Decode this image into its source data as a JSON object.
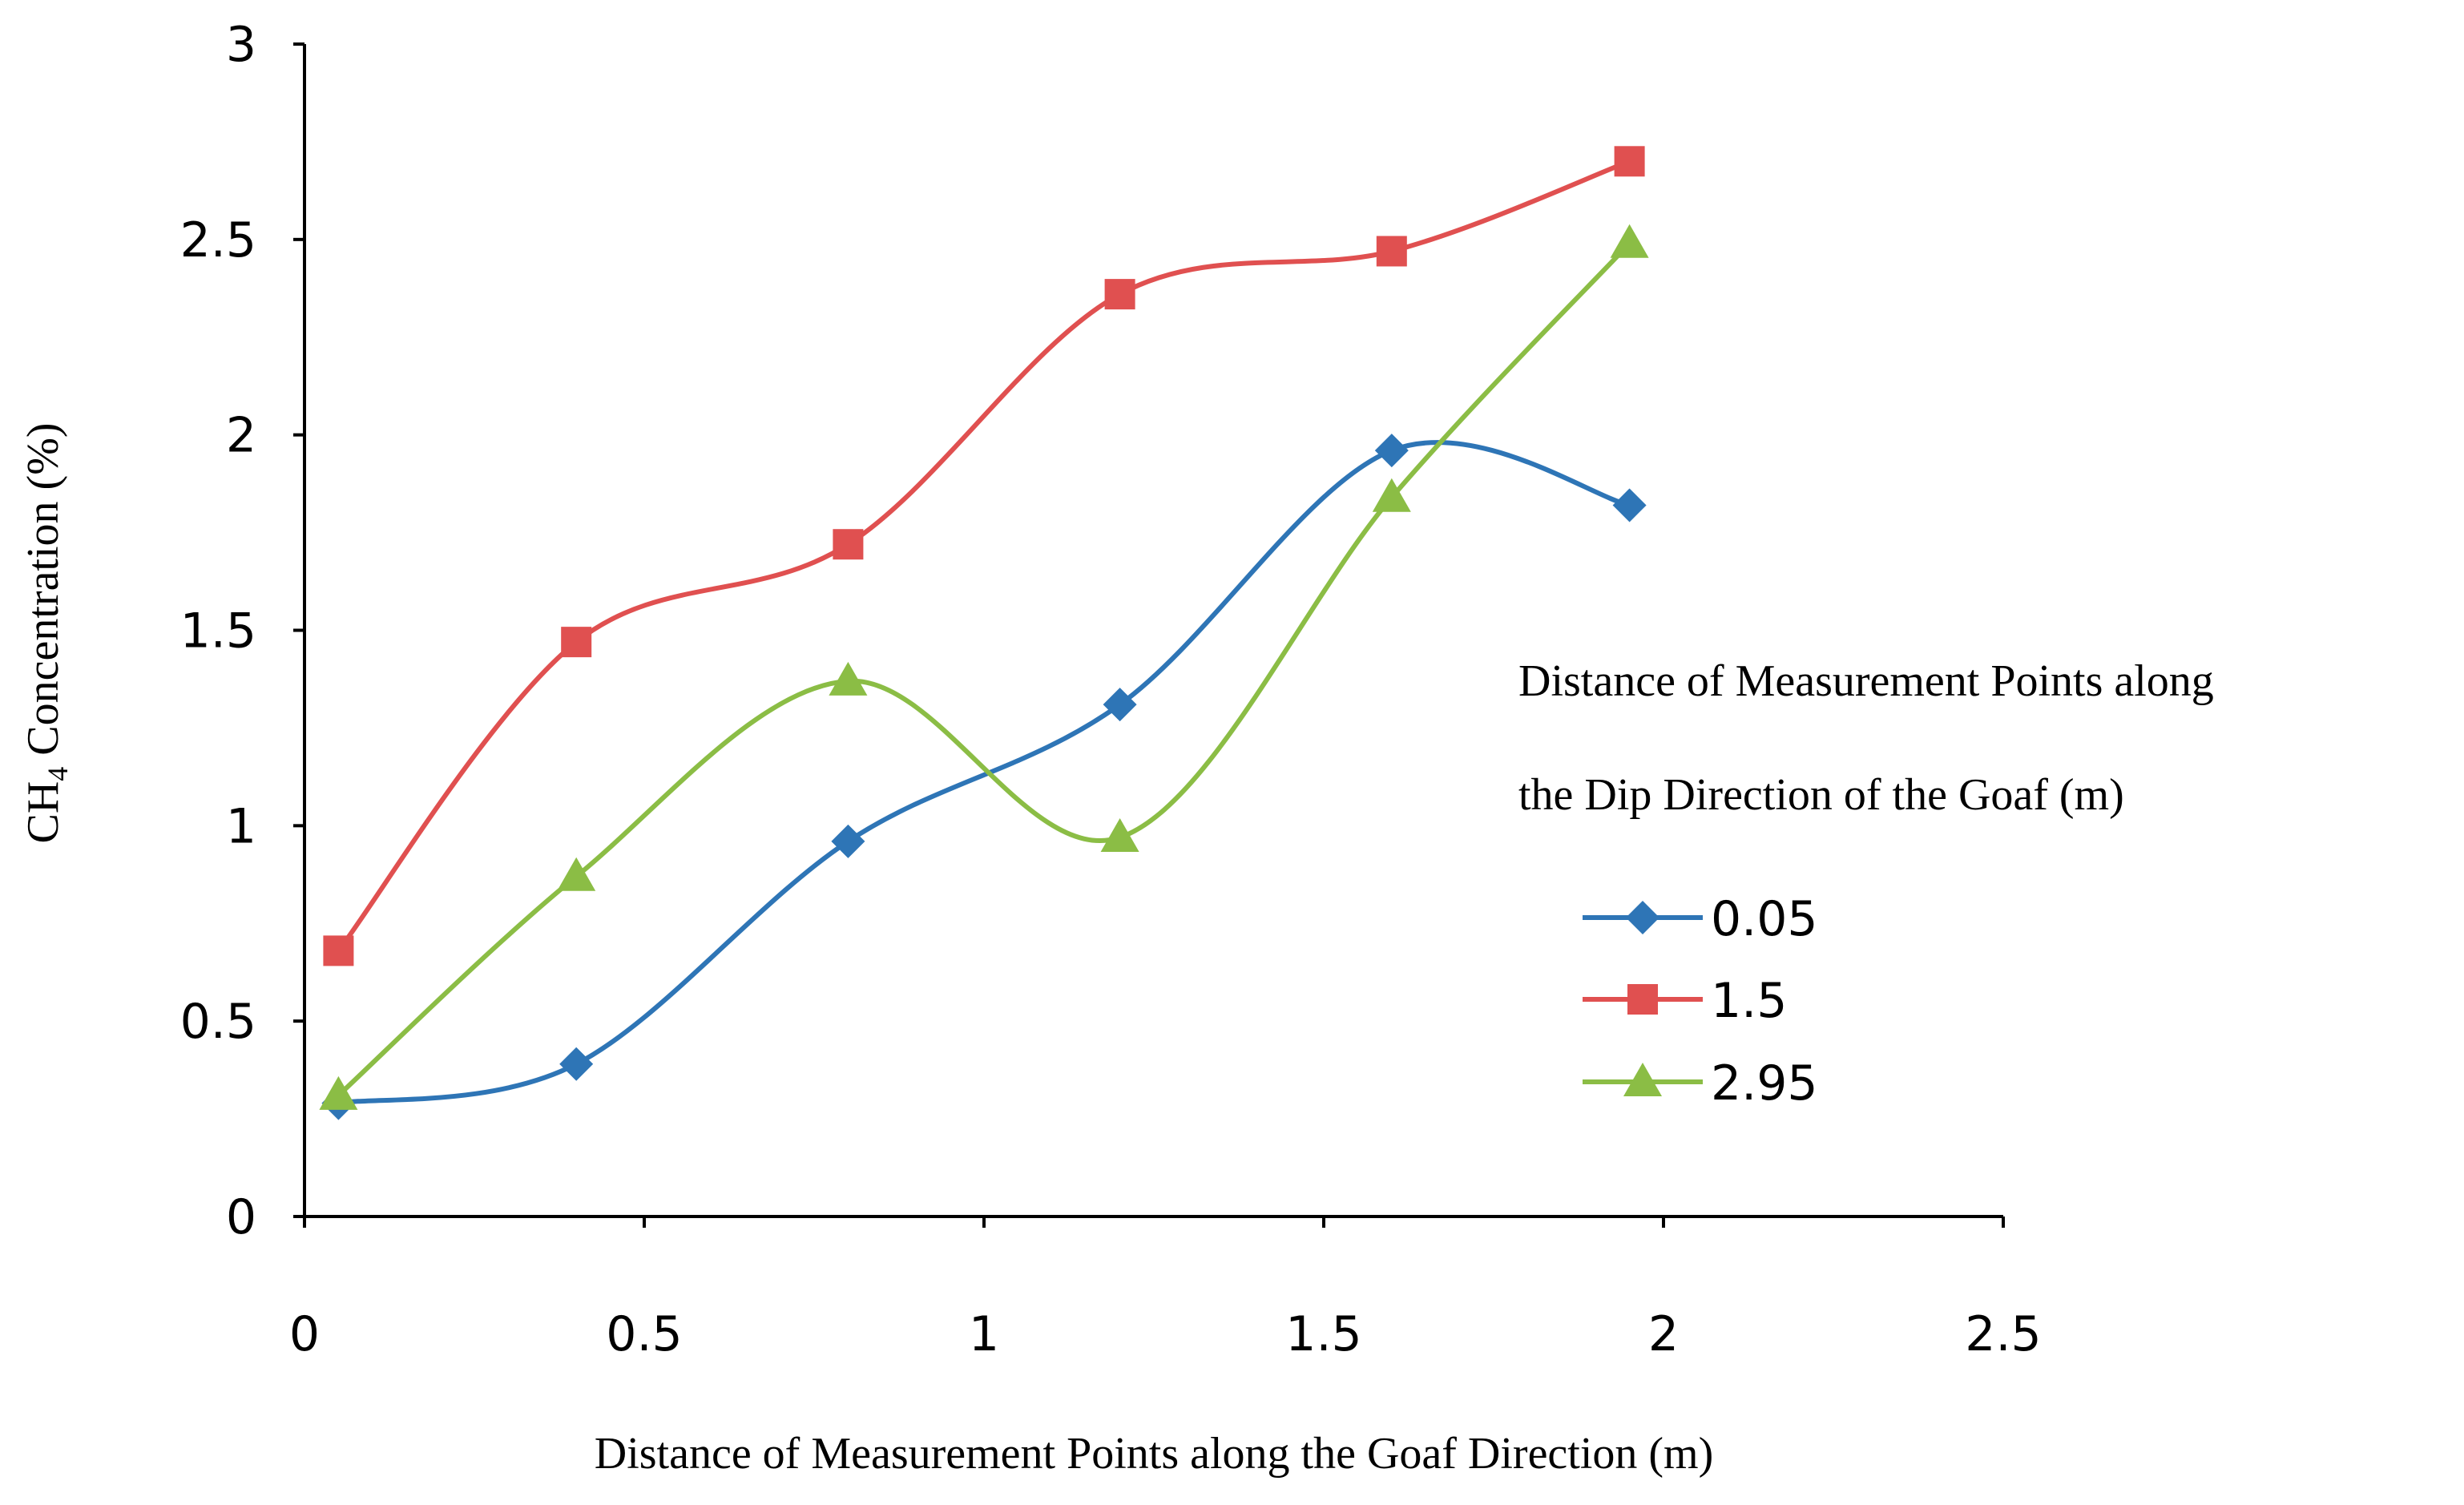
{
  "chart_data": {
    "type": "line",
    "smooth": true,
    "title": "",
    "xlabel": "Distance of Measurement Points along the Goaf Direction (m)",
    "ylabel": {
      "prefix": "CH",
      "subscript": "4",
      "suffix": " Concentration (%)"
    },
    "xlim": [
      0,
      2.5
    ],
    "ylim": [
      0,
      3
    ],
    "xticks": [
      0,
      0.5,
      1,
      1.5,
      2,
      2.5
    ],
    "xtick_labels": [
      "0",
      "0.5",
      "1",
      "1.5",
      "2",
      "2.5"
    ],
    "yticks": [
      0,
      0.5,
      1,
      1.5,
      2,
      2.5,
      3
    ],
    "ytick_labels": [
      "0",
      "0.5",
      "1",
      "1.5",
      "2",
      "2.5",
      "3"
    ],
    "grid": false,
    "legend": {
      "position": "right",
      "title_lines": [
        "Distance of Measurement Points along",
        "the Dip Direction of the Goaf (m)"
      ]
    },
    "x": [
      0.05,
      0.4,
      0.8,
      1.2,
      1.6,
      1.95
    ],
    "series": [
      {
        "name": "0.05",
        "color": "#2e75b6",
        "marker": "diamond",
        "values": [
          0.29,
          0.39,
          0.96,
          1.31,
          1.96,
          1.82
        ]
      },
      {
        "name": "1.5",
        "color": "#e05050",
        "marker": "square",
        "values": [
          0.68,
          1.47,
          1.72,
          2.36,
          2.47,
          2.7
        ]
      },
      {
        "name": "2.95",
        "color": "#8bbd45",
        "marker": "triangle",
        "values": [
          0.31,
          0.87,
          1.37,
          0.97,
          1.84,
          2.49
        ]
      }
    ]
  }
}
